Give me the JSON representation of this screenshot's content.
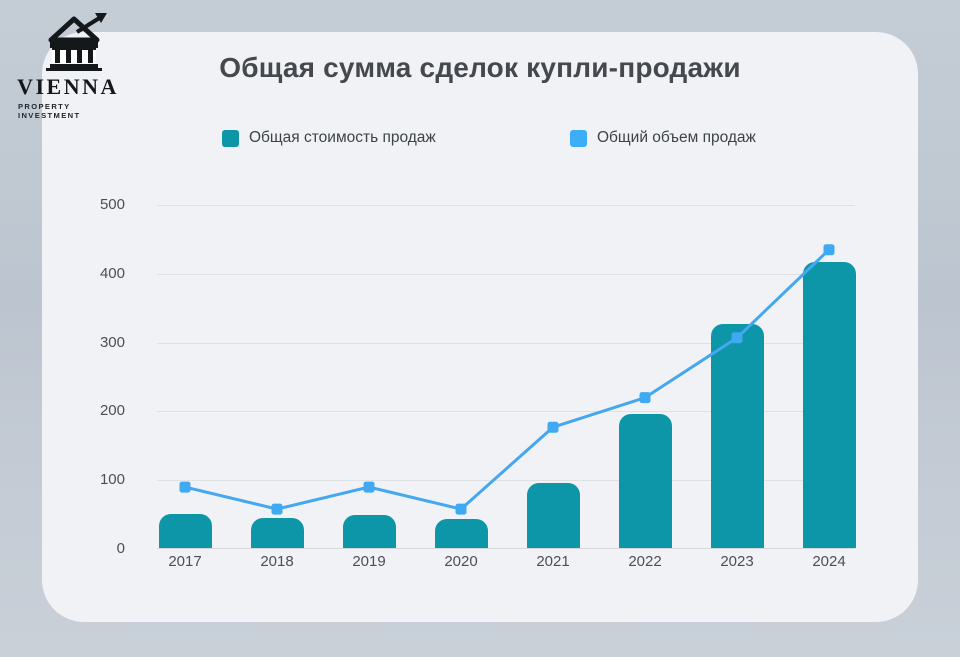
{
  "brand": {
    "name": "VIENNA",
    "tagline": "PROPERTY INVESTMENT",
    "logo_icon": "bank-building-with-growth-arrow"
  },
  "title": "Общая сумма сделок купли-продажи",
  "legend": [
    {
      "label": "Общая стоимость продаж",
      "color": "#0d95a8"
    },
    {
      "label": "Общий объем продаж",
      "color": "#3caef7"
    }
  ],
  "colors": {
    "bar_teal": "#0d95a8",
    "line_blue": "#44a7ef",
    "marker_blue": "#3fa9f2",
    "card_bg": "#f0f2f5",
    "page_bg": "#c3cbd4",
    "gridline": "#dfe2e5",
    "title_text": "#45494e",
    "axis_text": "#4a5055"
  },
  "chart_data": {
    "type": "combo",
    "title": "Общая сумма сделок купли-продажи",
    "categories": [
      "2017",
      "2018",
      "2019",
      "2020",
      "2021",
      "2022",
      "2023",
      "2024"
    ],
    "series": [
      {
        "name": "Общая стоимость продаж",
        "type": "bar",
        "color": "#0d95a8",
        "values": [
          50,
          43,
          48,
          42,
          95,
          195,
          325,
          415
        ]
      },
      {
        "name": "Общий объем продаж",
        "type": "line",
        "color": "#44a7ef",
        "marker": "square",
        "marker_color": "#3fa9f2",
        "values": [
          90,
          58,
          90,
          58,
          177,
          220,
          307,
          435
        ]
      }
    ],
    "xlabel": "",
    "ylabel": "",
    "ylim": [
      0,
      500
    ],
    "yticks": [
      0,
      100,
      200,
      300,
      400,
      500
    ],
    "grid": "horizontal",
    "legend_position": "top"
  }
}
